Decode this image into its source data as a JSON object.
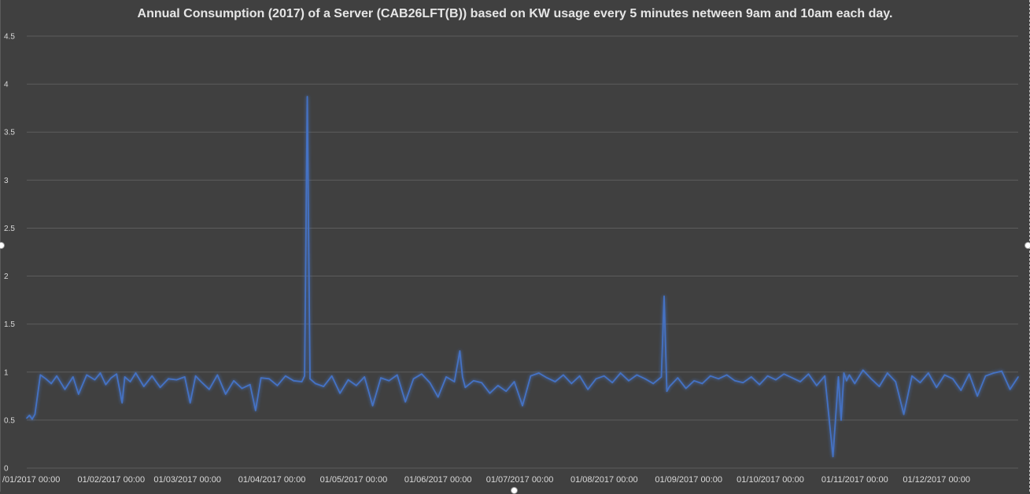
{
  "chart_data": {
    "type": "line",
    "title": "Annual Consumption (2017) of a Server (CAB26LFT(B)) based on KW usage every 5 minutes netween 9am and 10am each day.",
    "xlabel": "",
    "ylabel": "",
    "ylim": [
      0,
      4.5
    ],
    "y_ticks": [
      "0",
      "0.5",
      "1",
      "1.5",
      "2",
      "2.5",
      "3",
      "3.5",
      "4",
      "4.5"
    ],
    "x_tick_labels": [
      "/01/2017 00:00",
      "01/02/2017 00:00",
      "01/03/2017 00:00",
      "01/04/2017 00:00",
      "01/05/2017 00:00",
      "01/06/2017 00:00",
      "01/07/2017 00:00",
      "01/08/2017 00:00",
      "01/09/2017 00:00",
      "01/10/2017 00:00",
      "01/11/2017 00:00",
      "01/12/2017 00:00"
    ],
    "x_tick_dates": [
      "2017-01-01",
      "2017-02-01",
      "2017-03-01",
      "2017-04-01",
      "2017-05-01",
      "2017-06-01",
      "2017-07-01",
      "2017-08-01",
      "2017-09-01",
      "2017-10-01",
      "2017-11-01",
      "2017-12-01"
    ],
    "x_range": [
      "2017-01-01",
      "2017-12-31"
    ],
    "grid": true,
    "legend": "none",
    "line_color": "#4472c4",
    "series": [
      {
        "x": [
          "2017-01-01",
          "2017-01-02",
          "2017-01-03",
          "2017-01-04",
          "2017-01-06",
          "2017-01-08",
          "2017-01-10",
          "2017-01-12",
          "2017-01-15",
          "2017-01-18",
          "2017-01-20",
          "2017-01-23",
          "2017-01-26",
          "2017-01-28",
          "2017-01-30",
          "2017-02-01",
          "2017-02-03",
          "2017-02-05",
          "2017-02-06",
          "2017-02-08",
          "2017-02-10",
          "2017-02-13",
          "2017-02-16",
          "2017-02-19",
          "2017-02-22",
          "2017-02-25",
          "2017-02-28",
          "2017-03-02",
          "2017-03-04",
          "2017-03-06",
          "2017-03-09",
          "2017-03-12",
          "2017-03-15",
          "2017-03-18",
          "2017-03-21",
          "2017-03-24",
          "2017-03-26",
          "2017-03-28",
          "2017-03-31",
          "2017-04-03",
          "2017-04-06",
          "2017-04-09",
          "2017-04-12",
          "2017-04-13",
          "2017-04-14",
          "2017-04-15",
          "2017-04-17",
          "2017-04-20",
          "2017-04-23",
          "2017-04-26",
          "2017-04-29",
          "2017-05-02",
          "2017-05-05",
          "2017-05-08",
          "2017-05-11",
          "2017-05-14",
          "2017-05-17",
          "2017-05-20",
          "2017-05-23",
          "2017-05-26",
          "2017-05-29",
          "2017-06-01",
          "2017-06-04",
          "2017-06-07",
          "2017-06-09",
          "2017-06-10",
          "2017-06-11",
          "2017-06-14",
          "2017-06-17",
          "2017-06-20",
          "2017-06-23",
          "2017-06-26",
          "2017-06-29",
          "2017-07-02",
          "2017-07-05",
          "2017-07-08",
          "2017-07-11",
          "2017-07-14",
          "2017-07-17",
          "2017-07-20",
          "2017-07-23",
          "2017-07-26",
          "2017-07-29",
          "2017-08-01",
          "2017-08-04",
          "2017-08-07",
          "2017-08-10",
          "2017-08-13",
          "2017-08-16",
          "2017-08-19",
          "2017-08-22",
          "2017-08-23",
          "2017-08-24",
          "2017-08-25",
          "2017-08-28",
          "2017-08-31",
          "2017-09-03",
          "2017-09-06",
          "2017-09-09",
          "2017-09-12",
          "2017-09-15",
          "2017-09-18",
          "2017-09-21",
          "2017-09-24",
          "2017-09-27",
          "2017-09-30",
          "2017-10-03",
          "2017-10-06",
          "2017-10-09",
          "2017-10-12",
          "2017-10-15",
          "2017-10-18",
          "2017-10-21",
          "2017-10-24",
          "2017-10-26",
          "2017-10-27",
          "2017-10-28",
          "2017-10-29",
          "2017-10-30",
          "2017-11-01",
          "2017-11-04",
          "2017-11-07",
          "2017-11-10",
          "2017-11-13",
          "2017-11-16",
          "2017-11-19",
          "2017-11-22",
          "2017-11-25",
          "2017-11-28",
          "2017-12-01",
          "2017-12-04",
          "2017-12-07",
          "2017-12-10",
          "2017-12-13",
          "2017-12-16",
          "2017-12-19",
          "2017-12-22",
          "2017-12-25",
          "2017-12-28",
          "2017-12-31"
        ],
        "values": [
          0.52,
          0.55,
          0.51,
          0.56,
          0.97,
          0.93,
          0.88,
          0.96,
          0.82,
          0.95,
          0.77,
          0.97,
          0.92,
          0.99,
          0.87,
          0.94,
          0.98,
          0.68,
          0.95,
          0.9,
          0.99,
          0.85,
          0.96,
          0.84,
          0.93,
          0.92,
          0.95,
          0.68,
          0.96,
          0.9,
          0.82,
          0.97,
          0.77,
          0.91,
          0.83,
          0.87,
          0.6,
          0.94,
          0.93,
          0.86,
          0.96,
          0.91,
          0.9,
          0.96,
          3.87,
          0.93,
          0.88,
          0.85,
          0.96,
          0.78,
          0.92,
          0.86,
          0.95,
          0.65,
          0.94,
          0.91,
          0.97,
          0.69,
          0.93,
          0.98,
          0.89,
          0.74,
          0.95,
          0.9,
          1.22,
          0.95,
          0.84,
          0.91,
          0.89,
          0.78,
          0.86,
          0.8,
          0.9,
          0.65,
          0.96,
          0.99,
          0.94,
          0.9,
          0.97,
          0.88,
          0.96,
          0.82,
          0.93,
          0.96,
          0.89,
          0.99,
          0.91,
          0.97,
          0.93,
          0.88,
          0.95,
          1.79,
          0.8,
          0.85,
          0.94,
          0.83,
          0.91,
          0.88,
          0.96,
          0.93,
          0.97,
          0.91,
          0.89,
          0.95,
          0.87,
          0.96,
          0.92,
          0.98,
          0.94,
          0.9,
          0.98,
          0.86,
          0.96,
          0.12,
          0.95,
          0.5,
          0.99,
          0.91,
          0.97,
          0.88,
          1.02,
          0.93,
          0.85,
          0.99,
          0.9,
          0.56,
          0.96,
          0.89,
          0.99,
          0.84,
          0.97,
          0.93,
          0.81,
          0.98,
          0.75,
          0.96,
          0.99,
          1.01,
          0.82,
          0.95
        ]
      }
    ]
  }
}
